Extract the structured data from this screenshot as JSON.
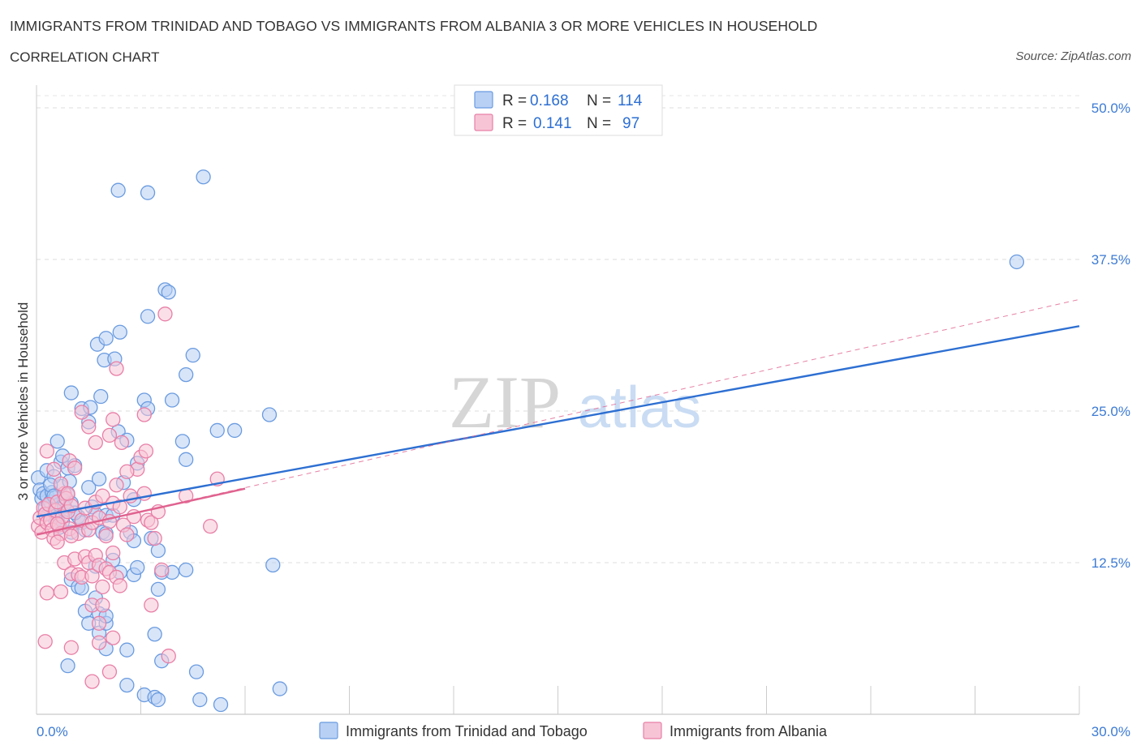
{
  "title": "IMMIGRANTS FROM TRINIDAD AND TOBAGO VS IMMIGRANTS FROM ALBANIA 3 OR MORE VEHICLES IN HOUSEHOLD",
  "subtitle": "CORRELATION CHART",
  "source": "Source: ZipAtlas.com",
  "watermark": {
    "zip": "ZIP",
    "atlas": "atlas"
  },
  "chart_data": {
    "type": "scatter",
    "title": "IMMIGRANTS FROM TRINIDAD AND TOBAGO VS IMMIGRANTS FROM ALBANIA 3 OR MORE VEHICLES IN HOUSEHOLD",
    "xlabel": "",
    "ylabel": "3 or more Vehicles in Household",
    "xlim": [
      0,
      30
    ],
    "ylim": [
      0,
      51
    ],
    "x_tick_labels": [
      "0.0%",
      "30.0%"
    ],
    "y_ticks": [
      12.5,
      25.0,
      37.5,
      50.0
    ],
    "y_tick_labels": [
      "12.5%",
      "25.0%",
      "37.5%",
      "50.0%"
    ],
    "grid": true,
    "legend_position": "top-center",
    "series": [
      {
        "name": "Immigrants from Trinidad and Tobago",
        "color": "#6a9be0",
        "fill": "#b8d0f4",
        "R": "0.168",
        "N": "114",
        "trend": {
          "x": [
            0,
            30
          ],
          "y": [
            16.3,
            32.0
          ],
          "style": "solid",
          "color": "#2d6fd2"
        },
        "points": [
          [
            0.05,
            19.5
          ],
          [
            0.1,
            18.5
          ],
          [
            0.15,
            17.8
          ],
          [
            0.2,
            18.2
          ],
          [
            0.25,
            17.0
          ],
          [
            0.3,
            18.0
          ],
          [
            0.35,
            16.5
          ],
          [
            0.4,
            17.5
          ],
          [
            0.45,
            18.3
          ],
          [
            0.5,
            16.8
          ],
          [
            0.55,
            17.9
          ],
          [
            0.6,
            16.2
          ],
          [
            0.65,
            17.3
          ],
          [
            0.7,
            18.8
          ],
          [
            0.75,
            15.9
          ],
          [
            0.8,
            17.6
          ],
          [
            0.85,
            16.9
          ],
          [
            0.9,
            18.1
          ],
          [
            0.95,
            19.2
          ],
          [
            1.0,
            17.4
          ],
          [
            0.3,
            20.1
          ],
          [
            0.5,
            19.6
          ],
          [
            0.7,
            20.8
          ],
          [
            0.9,
            20.3
          ],
          [
            0.6,
            22.5
          ],
          [
            0.75,
            21.3
          ],
          [
            1.1,
            20.5
          ],
          [
            0.4,
            18.9
          ],
          [
            0.55,
            16.0
          ],
          [
            0.65,
            15.4
          ],
          [
            1.0,
            15.0
          ],
          [
            1.2,
            16.3
          ],
          [
            1.3,
            15.8
          ],
          [
            1.4,
            15.2
          ],
          [
            1.5,
            18.7
          ],
          [
            1.6,
            17.1
          ],
          [
            1.7,
            16.5
          ],
          [
            1.8,
            19.4
          ],
          [
            1.9,
            15.0
          ],
          [
            2.0,
            16.4
          ],
          [
            2.2,
            16.4
          ],
          [
            2.5,
            19.1
          ],
          [
            2.8,
            17.7
          ],
          [
            1.0,
            26.5
          ],
          [
            1.3,
            25.2
          ],
          [
            1.5,
            24.1
          ],
          [
            1.55,
            25.3
          ],
          [
            1.85,
            26.2
          ],
          [
            1.95,
            29.2
          ],
          [
            2.25,
            29.3
          ],
          [
            2.35,
            23.3
          ],
          [
            2.6,
            22.6
          ],
          [
            2.9,
            20.7
          ],
          [
            2.4,
            31.5
          ],
          [
            1.75,
            30.5
          ],
          [
            2.0,
            31.0
          ],
          [
            3.2,
            43.0
          ],
          [
            2.35,
            43.2
          ],
          [
            4.8,
            44.3
          ],
          [
            3.7,
            35.0
          ],
          [
            3.8,
            34.8
          ],
          [
            3.2,
            32.8
          ],
          [
            4.5,
            29.6
          ],
          [
            4.3,
            28.0
          ],
          [
            3.1,
            25.9
          ],
          [
            3.2,
            25.2
          ],
          [
            3.9,
            25.9
          ],
          [
            4.2,
            22.5
          ],
          [
            4.3,
            21.0
          ],
          [
            5.2,
            23.4
          ],
          [
            5.7,
            23.4
          ],
          [
            6.7,
            24.7
          ],
          [
            3.3,
            14.5
          ],
          [
            3.5,
            13.5
          ],
          [
            3.6,
            11.7
          ],
          [
            3.5,
            10.3
          ],
          [
            3.9,
            11.7
          ],
          [
            4.3,
            11.9
          ],
          [
            2.7,
            15.0
          ],
          [
            2.8,
            14.3
          ],
          [
            2.0,
            14.9
          ],
          [
            2.2,
            12.7
          ],
          [
            2.4,
            11.7
          ],
          [
            2.8,
            11.5
          ],
          [
            2.9,
            12.1
          ],
          [
            1.7,
            12.2
          ],
          [
            1.0,
            11.1
          ],
          [
            1.2,
            10.5
          ],
          [
            1.3,
            10.4
          ],
          [
            1.4,
            8.5
          ],
          [
            1.5,
            7.5
          ],
          [
            1.7,
            9.6
          ],
          [
            1.8,
            8.3
          ],
          [
            1.8,
            6.7
          ],
          [
            2.0,
            5.4
          ],
          [
            2.0,
            7.5
          ],
          [
            2.0,
            8.1
          ],
          [
            2.6,
            5.3
          ],
          [
            3.4,
            6.6
          ],
          [
            3.6,
            4.4
          ],
          [
            0.9,
            4.0
          ],
          [
            2.6,
            2.4
          ],
          [
            3.1,
            1.6
          ],
          [
            3.4,
            1.4
          ],
          [
            3.5,
            1.2
          ],
          [
            4.7,
            1.2
          ],
          [
            5.3,
            0.8
          ],
          [
            4.6,
            3.5
          ],
          [
            7.0,
            2.1
          ],
          [
            6.8,
            12.3
          ],
          [
            28.2,
            37.3
          ],
          [
            0.5,
            18.0
          ],
          [
            0.8,
            17.1
          ],
          [
            1.1,
            16.6
          ]
        ]
      },
      {
        "name": "Immigrants from Albania",
        "color": "#e87fa6",
        "fill": "#f7c4d6",
        "R": "0.141",
        "N": "97",
        "trend": {
          "x": [
            0,
            6
          ],
          "y": [
            14.8,
            18.6
          ],
          "style": "solid",
          "color": "#e0628f",
          "extended_x": [
            0,
            30
          ],
          "extended_y": [
            14.8,
            34.2
          ],
          "extended_style": "dashed"
        },
        "points": [
          [
            0.05,
            15.5
          ],
          [
            0.1,
            16.2
          ],
          [
            0.15,
            15.0
          ],
          [
            0.2,
            17.0
          ],
          [
            0.25,
            16.5
          ],
          [
            0.3,
            15.8
          ],
          [
            0.35,
            17.3
          ],
          [
            0.4,
            16.0
          ],
          [
            0.45,
            15.2
          ],
          [
            0.5,
            14.5
          ],
          [
            0.55,
            16.8
          ],
          [
            0.6,
            17.5
          ],
          [
            0.65,
            15.6
          ],
          [
            0.7,
            14.9
          ],
          [
            0.75,
            16.3
          ],
          [
            0.8,
            18.2
          ],
          [
            0.85,
            17.8
          ],
          [
            0.9,
            16.7
          ],
          [
            0.95,
            15.3
          ],
          [
            1.0,
            17.2
          ],
          [
            0.3,
            21.7
          ],
          [
            0.5,
            20.2
          ],
          [
            0.7,
            19.0
          ],
          [
            0.95,
            20.9
          ],
          [
            1.1,
            20.3
          ],
          [
            0.6,
            14.2
          ],
          [
            1.2,
            14.9
          ],
          [
            1.3,
            16.0
          ],
          [
            1.4,
            17.0
          ],
          [
            1.5,
            15.2
          ],
          [
            1.6,
            15.8
          ],
          [
            1.7,
            17.5
          ],
          [
            1.8,
            16.2
          ],
          [
            1.9,
            18.0
          ],
          [
            2.0,
            14.7
          ],
          [
            2.1,
            15.9
          ],
          [
            2.2,
            17.4
          ],
          [
            2.3,
            18.9
          ],
          [
            2.4,
            17.1
          ],
          [
            2.5,
            15.6
          ],
          [
            2.6,
            14.8
          ],
          [
            2.7,
            18.0
          ],
          [
            2.8,
            16.3
          ],
          [
            2.9,
            20.2
          ],
          [
            3.0,
            21.2
          ],
          [
            3.1,
            18.2
          ],
          [
            3.2,
            16.0
          ],
          [
            3.3,
            15.8
          ],
          [
            3.4,
            14.5
          ],
          [
            3.5,
            16.7
          ],
          [
            1.3,
            24.9
          ],
          [
            1.5,
            23.7
          ],
          [
            1.7,
            22.4
          ],
          [
            2.1,
            23.0
          ],
          [
            2.2,
            24.3
          ],
          [
            2.3,
            28.5
          ],
          [
            2.45,
            22.4
          ],
          [
            2.6,
            20.0
          ],
          [
            3.1,
            24.7
          ],
          [
            3.15,
            21.7
          ],
          [
            3.7,
            33.0
          ],
          [
            4.3,
            18.0
          ],
          [
            5.2,
            19.4
          ],
          [
            5.0,
            15.5
          ],
          [
            0.8,
            12.5
          ],
          [
            1.0,
            11.6
          ],
          [
            1.1,
            12.8
          ],
          [
            1.2,
            11.5
          ],
          [
            1.3,
            11.3
          ],
          [
            1.4,
            13.0
          ],
          [
            1.5,
            12.5
          ],
          [
            1.6,
            11.4
          ],
          [
            1.7,
            13.1
          ],
          [
            1.8,
            12.3
          ],
          [
            1.9,
            10.5
          ],
          [
            2.0,
            12.0
          ],
          [
            2.1,
            11.7
          ],
          [
            2.2,
            13.3
          ],
          [
            2.3,
            11.3
          ],
          [
            2.4,
            10.6
          ],
          [
            0.3,
            10.0
          ],
          [
            0.7,
            10.1
          ],
          [
            1.6,
            9.0
          ],
          [
            1.9,
            9.0
          ],
          [
            1.8,
            7.5
          ],
          [
            2.2,
            6.3
          ],
          [
            1.8,
            5.9
          ],
          [
            2.1,
            3.5
          ],
          [
            3.3,
            9.0
          ],
          [
            3.6,
            11.9
          ],
          [
            0.25,
            6.0
          ],
          [
            1.0,
            5.5
          ],
          [
            1.6,
            2.7
          ],
          [
            1.0,
            14.7
          ],
          [
            0.6,
            15.7
          ],
          [
            3.8,
            4.8
          ],
          [
            0.9,
            18.2
          ]
        ]
      }
    ]
  },
  "legend": {
    "r_label": "R =",
    "n_label": "N =",
    "rows": [
      {
        "r": "0.168",
        "n": "114"
      },
      {
        "r": "0.141",
        "n": "97"
      }
    ]
  },
  "bottom_legend": [
    {
      "label": "Immigrants from Trinidad and Tobago"
    },
    {
      "label": "Immigrants from Albania"
    }
  ]
}
